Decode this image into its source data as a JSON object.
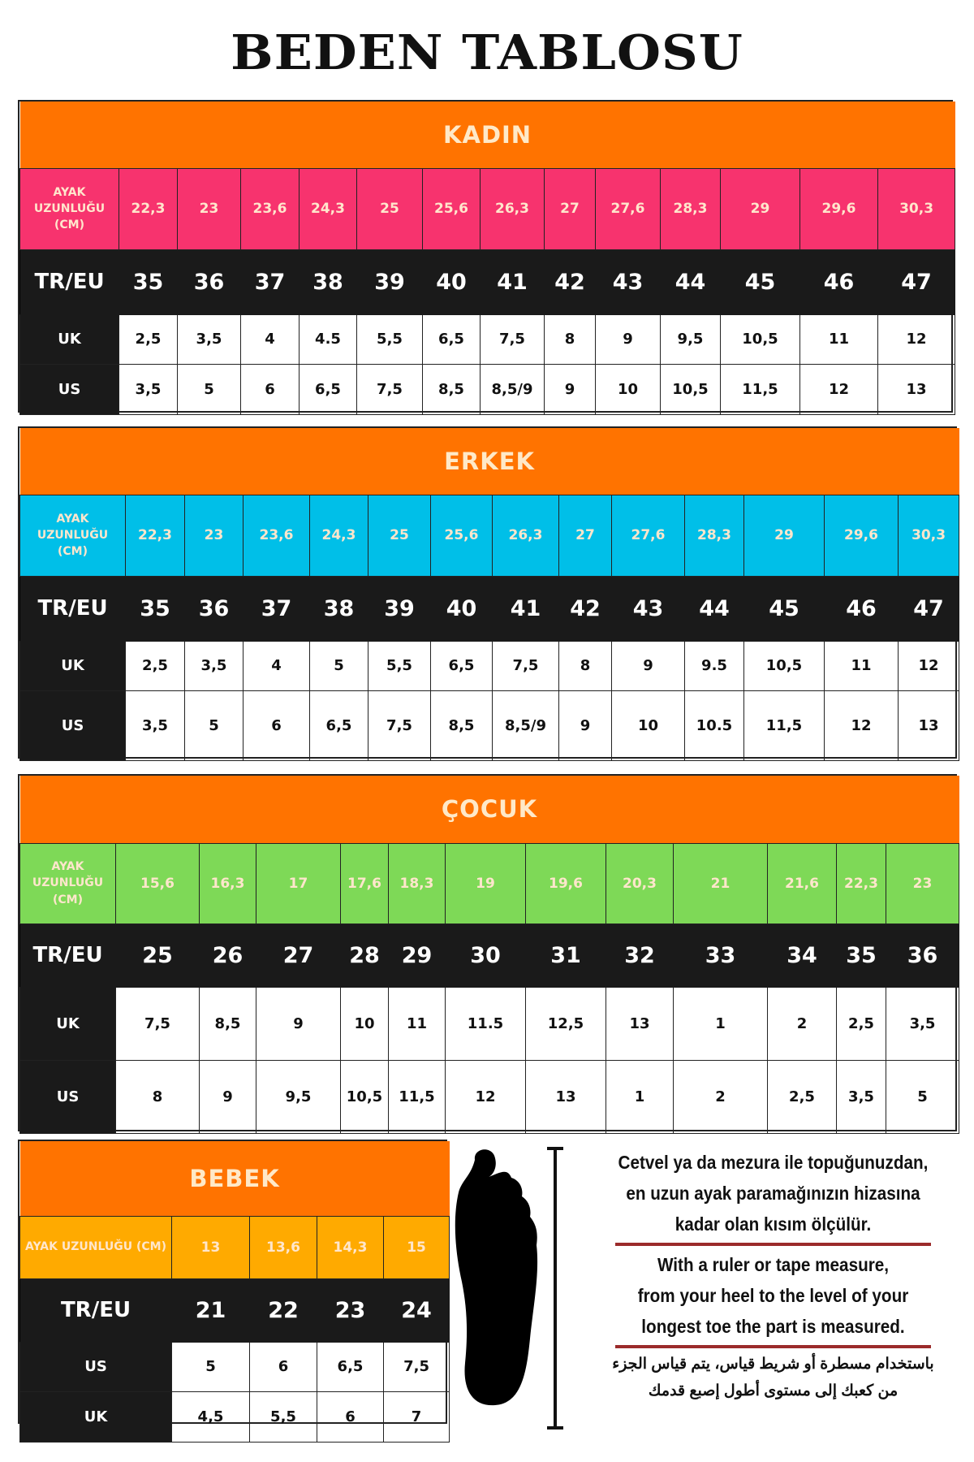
{
  "title": "BEDEN TABLOSU",
  "colors": {
    "header": "#FF7300",
    "kadin": "#F7336E",
    "erkek": "#00BFE8",
    "cocuk": "#7ED957",
    "bebek": "#FFAA00",
    "dark": "#1a1a1a"
  },
  "sections": [
    {
      "title": "KADIN",
      "accent": "kadin",
      "rows": [
        {
          "label": "AYAK UZUNLUĞU (CM)",
          "values": [
            "22,3",
            "23",
            "23,6",
            "24,3",
            "25",
            "25,6",
            "26,3",
            "27",
            "27,6",
            "28,3",
            "29",
            "29,6",
            "30,3"
          ]
        },
        {
          "label": "TR/EU",
          "values": [
            "35",
            "36",
            "37",
            "38",
            "39",
            "40",
            "41",
            "42",
            "43",
            "44",
            "45",
            "46",
            "47"
          ]
        },
        {
          "label": "UK",
          "values": [
            "2,5",
            "3,5",
            "4",
            "4.5",
            "5,5",
            "6,5",
            "7,5",
            "8",
            "9",
            "9,5",
            "10,5",
            "11",
            "12"
          ]
        },
        {
          "label": "US",
          "values": [
            "3,5",
            "5",
            "6",
            "6,5",
            "7,5",
            "8,5",
            "8,5/9",
            "9",
            "10",
            "10,5",
            "11,5",
            "12",
            "13"
          ]
        }
      ]
    },
    {
      "title": "ERKEK",
      "accent": "erkek",
      "rows": [
        {
          "label": "AYAK UZUNLUĞU (CM)",
          "values": [
            "22,3",
            "23",
            "23,6",
            "24,3",
            "25",
            "25,6",
            "26,3",
            "27",
            "27,6",
            "28,3",
            "29",
            "29,6",
            "30,3"
          ]
        },
        {
          "label": "TR/EU",
          "values": [
            "35",
            "36",
            "37",
            "38",
            "39",
            "40",
            "41",
            "42",
            "43",
            "44",
            "45",
            "46",
            "47"
          ]
        },
        {
          "label": "UK",
          "values": [
            "2,5",
            "3,5",
            "4",
            "5",
            "5,5",
            "6,5",
            "7,5",
            "8",
            "9",
            "9.5",
            "10,5",
            "11",
            "12"
          ]
        },
        {
          "label": "US",
          "values": [
            "3,5",
            "5",
            "6",
            "6,5",
            "7,5",
            "8,5",
            "8,5/9",
            "9",
            "10",
            "10.5",
            "11,5",
            "12",
            "13"
          ]
        }
      ]
    },
    {
      "title": "ÇOCUK",
      "accent": "cocuk",
      "rows": [
        {
          "label": "AYAK UZUNLUĞU (CM)",
          "values": [
            "15,6",
            "16,3",
            "17",
            "17,6",
            "18,3",
            "19",
            "19,6",
            "20,3",
            "21",
            "21,6",
            "22,3",
            "23"
          ]
        },
        {
          "label": "TR/EU",
          "values": [
            "25",
            "26",
            "27",
            "28",
            "29",
            "30",
            "31",
            "32",
            "33",
            "34",
            "35",
            "36"
          ]
        },
        {
          "label": "UK",
          "values": [
            "7,5",
            "8,5",
            "9",
            "10",
            "11",
            "11.5",
            "12,5",
            "13",
            "1",
            "2",
            "2,5",
            "3,5"
          ]
        },
        {
          "label": "US",
          "values": [
            "8",
            "9",
            "9,5",
            "10,5",
            "11,5",
            "12",
            "13",
            "1",
            "2",
            "2,5",
            "3,5",
            "5"
          ]
        }
      ]
    },
    {
      "title": "BEBEK",
      "accent": "bebek",
      "rows": [
        {
          "label": "AYAK UZUNLUĞU (CM)",
          "values": [
            "13",
            "13,6",
            "14,3",
            "15"
          ]
        },
        {
          "label": "TR/EU",
          "values": [
            "21",
            "22",
            "23",
            "24"
          ]
        },
        {
          "label": "US",
          "values": [
            "5",
            "6",
            "6,5",
            "7,5"
          ]
        },
        {
          "label": "UK",
          "values": [
            "4,5",
            "5,5",
            "6",
            "7"
          ]
        }
      ]
    }
  ],
  "instructions": {
    "tr": [
      "Cetvel ya da mezura ile topuğunuzdan,",
      "en uzun ayak paramağınızın hizasına",
      "kadar olan kısım ölçülür."
    ],
    "en": [
      "With a ruler or tape measure,",
      "from your heel to the level of your",
      "longest toe the part is measured."
    ],
    "ar": [
      "باستخدام مسطرة أو شريط قياس، يتم قياس الجزء",
      "من كعبك إلى مستوى أطول إصبع قدمك"
    ]
  }
}
